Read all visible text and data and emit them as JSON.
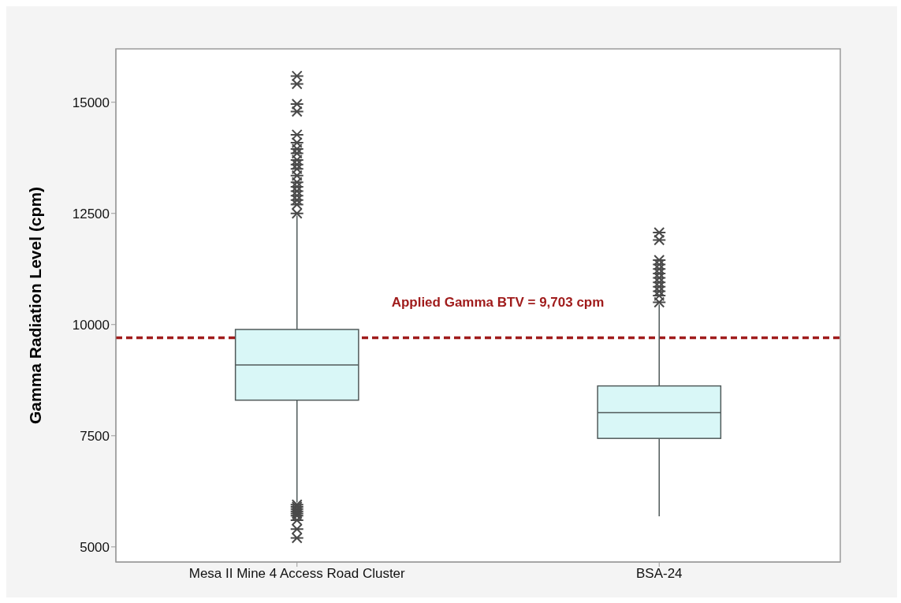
{
  "chart_data": {
    "type": "box",
    "ylabel": "Gamma Radiation Level (cpm)",
    "categories": [
      "Mesa II Mine 4 Access Road Cluster",
      "BSA-24"
    ],
    "color": "#d9f7f7",
    "boxes": [
      {
        "low": 6000,
        "q1": 8300,
        "median": 9090,
        "q3": 9890,
        "high": 12450,
        "outliers": [
          15590,
          15410,
          14960,
          14790,
          14270,
          14090,
          13950,
          13850,
          13700,
          13600,
          13500,
          13350,
          13200,
          13100,
          13000,
          12900,
          12800,
          12700,
          12500,
          5950,
          5900,
          5850,
          5800,
          5750,
          5700,
          5600,
          5400,
          5200
        ]
      },
      {
        "low": 5690,
        "q1": 7440,
        "median": 8020,
        "q3": 8620,
        "high": 10450,
        "outliers": [
          12070,
          11900,
          11450,
          11350,
          11250,
          11150,
          11050,
          10950,
          10850,
          10750,
          10650,
          10500
        ]
      }
    ],
    "ylim": [
      4660,
      16200
    ],
    "yticks": [
      5000,
      7500,
      10000,
      12500,
      15000
    ],
    "ref_lines": [
      {
        "axis": "y",
        "value": 9703,
        "label": "Applied Gamma BTV = 9,703 cpm",
        "color": "#a01c1c",
        "line_style": "dashed"
      }
    ],
    "xlabel": null
  }
}
